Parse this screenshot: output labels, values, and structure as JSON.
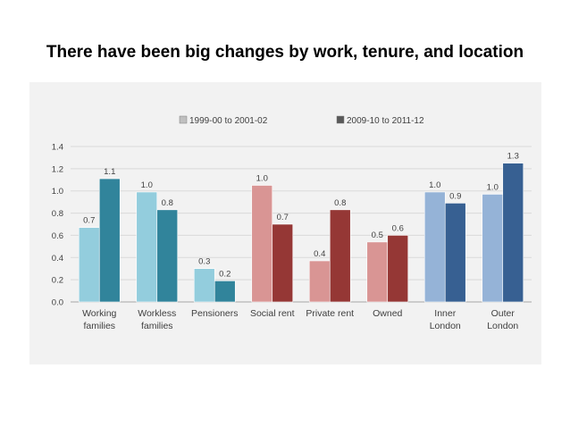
{
  "slide": {
    "title": "There have been big changes by work, tenure, and location"
  },
  "chart_data": {
    "type": "bar",
    "categories": [
      [
        "Working",
        "families"
      ],
      [
        "Workless",
        "families"
      ],
      [
        "Pensioners"
      ],
      [
        "Social rent"
      ],
      [
        "Private rent"
      ],
      [
        "Owned"
      ],
      [
        "Inner",
        "London"
      ],
      [
        "Outer",
        "London"
      ]
    ],
    "series": [
      {
        "name": "1999-00 to 2001-02",
        "values": [
          0.67,
          0.99,
          0.3,
          1.05,
          0.37,
          0.54,
          0.99,
          0.97
        ],
        "labels": [
          "0.7",
          "1.0",
          "0.3",
          "1.0",
          "0.4",
          "0.5",
          "1.0",
          "1.0"
        ]
      },
      {
        "name": "2009-10 to 2011-12",
        "values": [
          1.11,
          0.83,
          0.19,
          0.7,
          0.83,
          0.6,
          0.89,
          1.25
        ],
        "labels": [
          "1.1",
          "0.8",
          "0.2",
          "0.7",
          "0.8",
          "0.6",
          "0.9",
          "1.3"
        ]
      }
    ],
    "group_colors": [
      [
        "#93cddd",
        "#31849b"
      ],
      [
        "#93cddd",
        "#31849b"
      ],
      [
        "#93cddd",
        "#31849b"
      ],
      [
        "#d99594",
        "#953735"
      ],
      [
        "#d99594",
        "#953735"
      ],
      [
        "#d99594",
        "#953735"
      ],
      [
        "#95b3d7",
        "#376092"
      ],
      [
        "#95b3d7",
        "#376092"
      ]
    ],
    "legend_colors": [
      "#bfbfbf",
      "#595959"
    ],
    "ylim": [
      0,
      1.4
    ],
    "yticks": [
      "0.0",
      "0.2",
      "0.4",
      "0.6",
      "0.8",
      "1.0",
      "1.2",
      "1.4"
    ],
    "ytick_values": [
      0,
      0.2,
      0.4,
      0.6,
      0.8,
      1.0,
      1.2,
      1.4
    ],
    "grid": true,
    "legend_position": "top",
    "xlabel": "",
    "ylabel": ""
  }
}
